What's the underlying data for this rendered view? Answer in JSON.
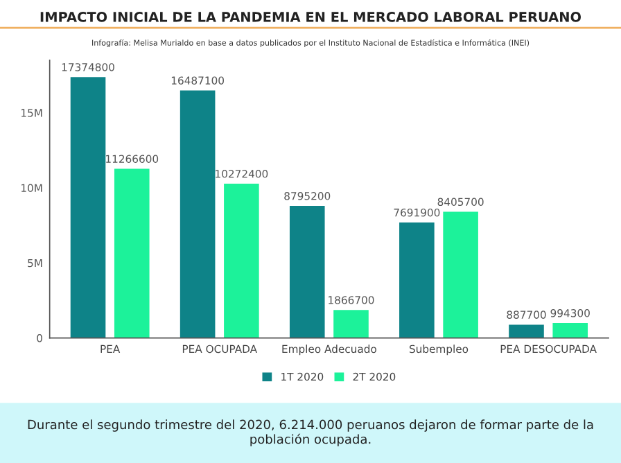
{
  "chart_data": {
    "type": "bar",
    "title": "IMPACTO INICIAL DE LA PANDEMIA EN EL MERCADO LABORAL PERUANO",
    "subtitle": "Infografía: Melisa Murialdo en base a datos publicados por el Instituto Nacional de Estadística e Informática (INEI)",
    "categories": [
      "PEA",
      "PEA OCUPADA",
      "Empleo Adecuado",
      "Subempleo",
      "PEA DESOCUPADA"
    ],
    "series": [
      {
        "name": "1T 2020",
        "color": "#0e8388",
        "values": [
          17374800,
          16487100,
          8795200,
          7691900,
          887700
        ]
      },
      {
        "name": "2T 2020",
        "color": "#1cf29a",
        "values": [
          11266600,
          10272400,
          1866700,
          8405700,
          994300
        ]
      }
    ],
    "ylim": [
      0,
      18500000
    ],
    "yticks": [
      0,
      {
        "value": 5000000,
        "label": "5M"
      },
      {
        "value": 10000000,
        "label": "10M"
      },
      {
        "value": 15000000,
        "label": "15M"
      }
    ],
    "data_labels": true,
    "grid": false,
    "legend": "bottom",
    "annotations": [
      "Durante el segundo trimestre del 2020, 6.214.000 peruanos dejaron de formar parte de la población ocupada."
    ]
  }
}
